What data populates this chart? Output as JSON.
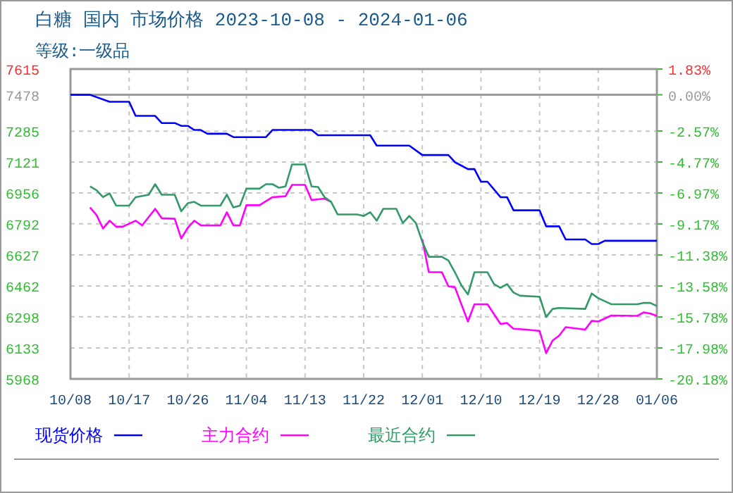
{
  "chart_data": {
    "type": "line",
    "title": "白糖 国内 市场价格 2023-10-08 - 2024-01-06",
    "subtitle": "等级:一级品",
    "xlim": [
      "2023-10-08",
      "2024-01-06"
    ],
    "xticks": [
      {
        "value": "2023-10-08",
        "label": "10/08"
      },
      {
        "value": "2023-10-17",
        "label": "10/17"
      },
      {
        "value": "2023-10-26",
        "label": "10/26"
      },
      {
        "value": "2023-11-04",
        "label": "11/04"
      },
      {
        "value": "2023-11-13",
        "label": "11/13"
      },
      {
        "value": "2023-11-22",
        "label": "11/22"
      },
      {
        "value": "2023-12-01",
        "label": "12/01"
      },
      {
        "value": "2023-12-10",
        "label": "12/10"
      },
      {
        "value": "2023-12-19",
        "label": "12/19"
      },
      {
        "value": "2023-12-28",
        "label": "12/28"
      },
      {
        "value": "2024-01-06",
        "label": "01/06"
      }
    ],
    "ylim": [
      5968,
      7615
    ],
    "yticks": [
      7615,
      7478,
      7285,
      7121,
      6956,
      6792,
      6627,
      6462,
      6298,
      6133,
      5968
    ],
    "y2lim": [
      -20.18,
      1.83
    ],
    "y2ticks": [
      {
        "value": 1.83,
        "label": "1.83%"
      },
      {
        "value": 0,
        "label": "0.00%"
      },
      {
        "value": -2.57,
        "label": "-2.57%"
      },
      {
        "value": -4.77,
        "label": "-4.77%"
      },
      {
        "value": -6.97,
        "label": "-6.97%"
      },
      {
        "value": -9.17,
        "label": "-9.17%"
      },
      {
        "value": -11.38,
        "label": "-11.38%"
      },
      {
        "value": -13.58,
        "label": "-13.58%"
      },
      {
        "value": -15.78,
        "label": "-15.78%"
      },
      {
        "value": -17.98,
        "label": "-17.98%"
      },
      {
        "value": -20.18,
        "label": "-20.18%"
      }
    ],
    "ref_lines": [
      {
        "axis": "y",
        "value": 7478,
        "color": "#999999"
      }
    ],
    "grid": true,
    "legend": "bottom",
    "series": [
      {
        "name": "现货价格",
        "color": "#0000ff",
        "x": [
          "2023-10-08",
          "2023-10-11",
          "2023-10-14",
          "2023-10-17",
          "2023-10-18",
          "2023-10-21",
          "2023-10-22",
          "2023-10-24",
          "2023-10-25",
          "2023-10-26",
          "2023-10-27",
          "2023-10-28",
          "2023-10-29",
          "2023-11-01",
          "2023-11-02",
          "2023-11-07",
          "2023-11-08",
          "2023-11-14",
          "2023-11-15",
          "2023-11-23",
          "2023-11-24",
          "2023-11-29",
          "2023-12-01",
          "2023-12-05",
          "2023-12-06",
          "2023-12-08",
          "2023-12-09",
          "2023-12-10",
          "2023-12-11",
          "2023-12-13",
          "2023-12-14",
          "2023-12-15",
          "2023-12-19",
          "2023-12-20",
          "2023-12-22",
          "2023-12-23",
          "2023-12-26",
          "2023-12-27",
          "2023-12-28",
          "2023-12-29",
          "2024-01-06"
        ],
        "values": [
          7478,
          7478,
          7441,
          7441,
          7366,
          7366,
          7328,
          7328,
          7313,
          7313,
          7291,
          7291,
          7271,
          7271,
          7253,
          7253,
          7291,
          7291,
          7263,
          7263,
          7208,
          7208,
          7158,
          7158,
          7120,
          7083,
          7083,
          7016,
          7016,
          6934,
          6934,
          6864,
          6864,
          6779,
          6779,
          6709,
          6709,
          6685,
          6685,
          6702,
          6702
        ]
      },
      {
        "name": "主力合约",
        "color": "#ff00ff",
        "x": [
          "2023-10-11",
          "2023-10-12",
          "2023-10-13",
          "2023-10-14",
          "2023-10-15",
          "2023-10-16",
          "2023-10-18",
          "2023-10-19",
          "2023-10-21",
          "2023-10-22",
          "2023-10-24",
          "2023-10-25",
          "2023-10-26",
          "2023-10-27",
          "2023-10-28",
          "2023-10-31",
          "2023-11-01",
          "2023-11-02",
          "2023-11-03",
          "2023-11-04",
          "2023-11-06",
          "2023-11-08",
          "2023-11-10",
          "2023-11-11",
          "2023-11-13",
          "2023-11-14",
          "2023-11-16",
          "2023-11-17",
          "2023-11-18",
          "2023-11-21",
          "2023-11-22",
          "2023-11-23",
          "2023-11-24",
          "2023-11-25",
          "2023-11-27",
          "2023-11-28",
          "2023-11-29",
          "2023-11-30",
          "2023-12-01",
          "2023-12-02",
          "2023-12-04",
          "2023-12-05",
          "2023-12-06",
          "2023-12-08",
          "2023-12-09",
          "2023-12-11",
          "2023-12-13",
          "2023-12-14",
          "2023-12-15",
          "2023-12-17",
          "2023-12-19",
          "2023-12-20",
          "2023-12-21",
          "2023-12-22",
          "2023-12-23",
          "2023-12-26",
          "2023-12-27",
          "2023-12-28",
          "2023-12-30",
          "2024-01-03",
          "2024-01-04",
          "2024-01-05",
          "2024-01-06"
        ],
        "values": [
          6879,
          6839,
          6767,
          6809,
          6777,
          6777,
          6809,
          6784,
          6872,
          6822,
          6819,
          6714,
          6771,
          6809,
          6784,
          6784,
          6854,
          6784,
          6784,
          6891,
          6891,
          6934,
          6939,
          6999,
          6999,
          6919,
          6926,
          6909,
          null,
          null,
          null,
          null,
          null,
          null,
          null,
          null,
          null,
          null,
          6709,
          6535,
          6535,
          6460,
          6455,
          6273,
          6365,
          6365,
          6260,
          6265,
          6235,
          6230,
          6223,
          6105,
          6172,
          6198,
          6243,
          6230,
          6277,
          6273,
          6305,
          6303,
          6322,
          6315,
          6303
        ]
      },
      {
        "name": "最近合约",
        "color": "#339966",
        "x": [
          "2023-10-11",
          "2023-10-12",
          "2023-10-13",
          "2023-10-14",
          "2023-10-15",
          "2023-10-17",
          "2023-10-18",
          "2023-10-20",
          "2023-10-21",
          "2023-10-22",
          "2023-10-24",
          "2023-10-25",
          "2023-10-26",
          "2023-10-27",
          "2023-10-28",
          "2023-10-31",
          "2023-11-01",
          "2023-11-02",
          "2023-11-03",
          "2023-11-04",
          "2023-11-06",
          "2023-11-07",
          "2023-11-08",
          "2023-11-09",
          "2023-11-10",
          "2023-11-11",
          "2023-11-13",
          "2023-11-14",
          "2023-11-15",
          "2023-11-16",
          "2023-11-17",
          "2023-11-18",
          "2023-11-21",
          "2023-11-22",
          "2023-11-23",
          "2023-11-24",
          "2023-11-25",
          "2023-11-27",
          "2023-11-28",
          "2023-11-29",
          "2023-11-30",
          "2023-12-01",
          "2023-12-02",
          "2023-12-04",
          "2023-12-05",
          "2023-12-06",
          "2023-12-07",
          "2023-12-08",
          "2023-12-09",
          "2023-12-11",
          "2023-12-12",
          "2023-12-13",
          "2023-12-14",
          "2023-12-15",
          "2023-12-16",
          "2023-12-19",
          "2023-12-20",
          "2023-12-21",
          "2023-12-22",
          "2023-12-26",
          "2023-12-27",
          "2023-12-28",
          "2023-12-30",
          "2024-01-03",
          "2024-01-04",
          "2024-01-05",
          "2024-01-06"
        ],
        "values": [
          6991,
          6971,
          6934,
          6954,
          6889,
          6889,
          6934,
          6947,
          7003,
          6947,
          6947,
          6859,
          6902,
          6909,
          6889,
          6889,
          6947,
          6879,
          6889,
          6979,
          6979,
          7003,
          7003,
          6984,
          6991,
          7108,
          7108,
          6991,
          6988,
          6934,
          6909,
          6842,
          6842,
          6834,
          6854,
          6809,
          6872,
          6872,
          6797,
          6834,
          6797,
          6697,
          6617,
          6617,
          6597,
          6535,
          6465,
          6417,
          6535,
          6535,
          6472,
          6452,
          6472,
          6427,
          6410,
          6405,
          6297,
          6340,
          6345,
          6340,
          6422,
          6397,
          6365,
          6365,
          6372,
          6372,
          6355
        ]
      }
    ]
  }
}
